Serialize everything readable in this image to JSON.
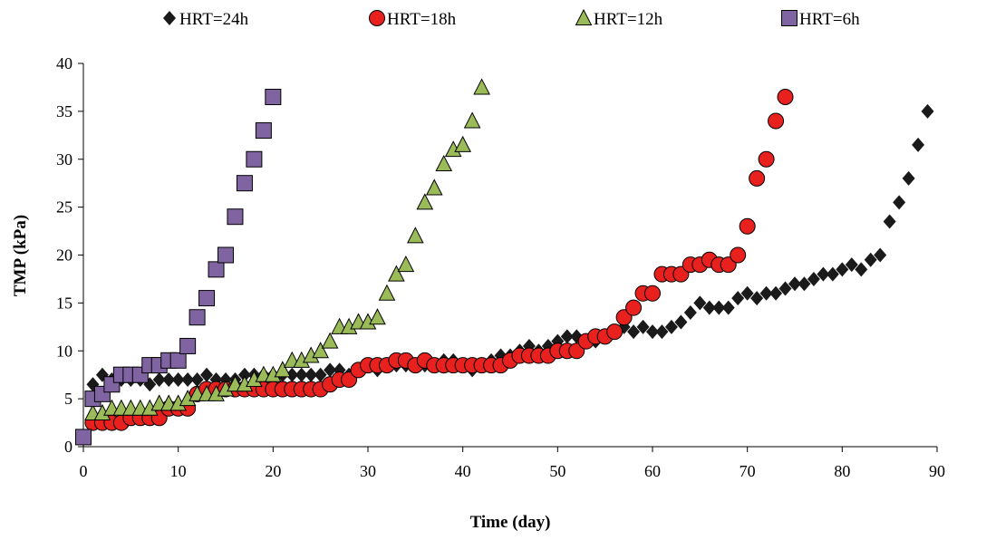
{
  "chart_data": {
    "type": "scatter",
    "title": "",
    "xlabel": "Time (day)",
    "ylabel": "TMP (kPa)",
    "xlim": [
      0,
      90
    ],
    "ylim": [
      0,
      40
    ],
    "xticks": [
      0,
      10,
      20,
      30,
      40,
      50,
      60,
      70,
      80,
      90
    ],
    "yticks": [
      0,
      5,
      10,
      15,
      20,
      25,
      30,
      35,
      40
    ],
    "grid": false,
    "legend_position": "top",
    "series": [
      {
        "name": "HRT=24h",
        "marker": "diamond",
        "color": "#1a1a1a",
        "points": [
          [
            0,
            1
          ],
          [
            1,
            6.5
          ],
          [
            2,
            7.5
          ],
          [
            3,
            7
          ],
          [
            4,
            7
          ],
          [
            5,
            7
          ],
          [
            6,
            7
          ],
          [
            7,
            6.5
          ],
          [
            8,
            7
          ],
          [
            9,
            7
          ],
          [
            10,
            7
          ],
          [
            11,
            7
          ],
          [
            12,
            7
          ],
          [
            13,
            7.5
          ],
          [
            14,
            7
          ],
          [
            15,
            7
          ],
          [
            16,
            7
          ],
          [
            17,
            7.5
          ],
          [
            18,
            7.5
          ],
          [
            19,
            7.5
          ],
          [
            20,
            7.5
          ],
          [
            21,
            7.5
          ],
          [
            22,
            7.5
          ],
          [
            23,
            7.5
          ],
          [
            24,
            7.5
          ],
          [
            25,
            7.5
          ],
          [
            26,
            8
          ],
          [
            27,
            8
          ],
          [
            28,
            7.5
          ],
          [
            29,
            8
          ],
          [
            30,
            8.5
          ],
          [
            31,
            8
          ],
          [
            32,
            8.5
          ],
          [
            33,
            8.5
          ],
          [
            34,
            8.5
          ],
          [
            35,
            8.5
          ],
          [
            36,
            8.5
          ],
          [
            37,
            8.5
          ],
          [
            38,
            9
          ],
          [
            39,
            9
          ],
          [
            40,
            8.5
          ],
          [
            41,
            8
          ],
          [
            42,
            8.5
          ],
          [
            43,
            9
          ],
          [
            44,
            9.5
          ],
          [
            45,
            9.5
          ],
          [
            46,
            10
          ],
          [
            47,
            10.5
          ],
          [
            48,
            10
          ],
          [
            49,
            10.5
          ],
          [
            50,
            11
          ],
          [
            51,
            11.5
          ],
          [
            52,
            11.5
          ],
          [
            53,
            11
          ],
          [
            54,
            11
          ],
          [
            55,
            11.5
          ],
          [
            56,
            12
          ],
          [
            57,
            12.5
          ],
          [
            58,
            12
          ],
          [
            59,
            12.5
          ],
          [
            60,
            12
          ],
          [
            61,
            12
          ],
          [
            62,
            12.5
          ],
          [
            63,
            13
          ],
          [
            64,
            14
          ],
          [
            65,
            15
          ],
          [
            66,
            14.5
          ],
          [
            67,
            14.5
          ],
          [
            68,
            14.5
          ],
          [
            69,
            15.5
          ],
          [
            70,
            16
          ],
          [
            71,
            15.5
          ],
          [
            72,
            16
          ],
          [
            73,
            16
          ],
          [
            74,
            16.5
          ],
          [
            75,
            17
          ],
          [
            76,
            17
          ],
          [
            77,
            17.5
          ],
          [
            78,
            18
          ],
          [
            79,
            18
          ],
          [
            80,
            18.5
          ],
          [
            81,
            19
          ],
          [
            82,
            18.5
          ],
          [
            83,
            19.5
          ],
          [
            84,
            20
          ],
          [
            85,
            23.5
          ],
          [
            86,
            25.5
          ],
          [
            87,
            28
          ],
          [
            88,
            31.5
          ],
          [
            89,
            35
          ]
        ]
      },
      {
        "name": "HRT=18h",
        "marker": "circle",
        "color": "#e8201e",
        "points": [
          [
            1,
            2.5
          ],
          [
            2,
            2.5
          ],
          [
            3,
            2.5
          ],
          [
            4,
            2.5
          ],
          [
            5,
            3
          ],
          [
            6,
            3
          ],
          [
            7,
            3
          ],
          [
            8,
            3
          ],
          [
            9,
            4
          ],
          [
            10,
            4
          ],
          [
            11,
            4
          ],
          [
            12,
            5.5
          ],
          [
            13,
            6
          ],
          [
            14,
            6
          ],
          [
            15,
            6
          ],
          [
            16,
            6
          ],
          [
            17,
            6
          ],
          [
            18,
            6
          ],
          [
            19,
            6
          ],
          [
            20,
            6
          ],
          [
            21,
            6
          ],
          [
            22,
            6
          ],
          [
            23,
            6
          ],
          [
            24,
            6
          ],
          [
            25,
            6
          ],
          [
            26,
            6.5
          ],
          [
            27,
            7
          ],
          [
            28,
            7
          ],
          [
            29,
            8
          ],
          [
            30,
            8.5
          ],
          [
            31,
            8.5
          ],
          [
            32,
            8.5
          ],
          [
            33,
            9
          ],
          [
            34,
            9
          ],
          [
            35,
            8.5
          ],
          [
            36,
            9
          ],
          [
            37,
            8.5
          ],
          [
            38,
            8.5
          ],
          [
            39,
            8.5
          ],
          [
            40,
            8.5
          ],
          [
            41,
            8.5
          ],
          [
            42,
            8.5
          ],
          [
            43,
            8.5
          ],
          [
            44,
            8.5
          ],
          [
            45,
            9
          ],
          [
            46,
            9.5
          ],
          [
            47,
            9.5
          ],
          [
            48,
            9.5
          ],
          [
            49,
            9.5
          ],
          [
            50,
            10
          ],
          [
            51,
            10
          ],
          [
            52,
            10
          ],
          [
            53,
            11
          ],
          [
            54,
            11.5
          ],
          [
            55,
            11.5
          ],
          [
            56,
            12
          ],
          [
            57,
            13.5
          ],
          [
            58,
            14.5
          ],
          [
            59,
            16
          ],
          [
            60,
            16
          ],
          [
            61,
            18
          ],
          [
            62,
            18
          ],
          [
            63,
            18
          ],
          [
            64,
            19
          ],
          [
            65,
            19
          ],
          [
            66,
            19.5
          ],
          [
            67,
            19
          ],
          [
            68,
            19
          ],
          [
            69,
            20
          ],
          [
            70,
            23
          ],
          [
            71,
            28
          ],
          [
            72,
            30
          ],
          [
            73,
            34
          ],
          [
            74,
            36.5
          ]
        ]
      },
      {
        "name": "HRT=12h",
        "marker": "triangle",
        "color": "#9bbb59",
        "points": [
          [
            1,
            3.5
          ],
          [
            2,
            3.5
          ],
          [
            3,
            4
          ],
          [
            4,
            4
          ],
          [
            5,
            4
          ],
          [
            6,
            4
          ],
          [
            7,
            4
          ],
          [
            8,
            4.5
          ],
          [
            9,
            4.5
          ],
          [
            10,
            4.5
          ],
          [
            11,
            5
          ],
          [
            12,
            5.5
          ],
          [
            13,
            5.5
          ],
          [
            14,
            5.5
          ],
          [
            15,
            6
          ],
          [
            16,
            6.5
          ],
          [
            17,
            6.5
          ],
          [
            18,
            7
          ],
          [
            19,
            7.5
          ],
          [
            20,
            7.5
          ],
          [
            21,
            8
          ],
          [
            22,
            9
          ],
          [
            23,
            9
          ],
          [
            24,
            9.5
          ],
          [
            25,
            10
          ],
          [
            26,
            11
          ],
          [
            27,
            12.5
          ],
          [
            28,
            12.5
          ],
          [
            29,
            13
          ],
          [
            30,
            13
          ],
          [
            31,
            13.5
          ],
          [
            32,
            16
          ],
          [
            33,
            18
          ],
          [
            34,
            19
          ],
          [
            35,
            22
          ],
          [
            36,
            25.5
          ],
          [
            37,
            27
          ],
          [
            38,
            29.5
          ],
          [
            39,
            31
          ],
          [
            40,
            31.5
          ],
          [
            41,
            34
          ],
          [
            42,
            37.5
          ]
        ]
      },
      {
        "name": "HRT=6h",
        "marker": "square",
        "color": "#8064a2",
        "points": [
          [
            0,
            1
          ],
          [
            1,
            5
          ],
          [
            2,
            5.5
          ],
          [
            3,
            6.5
          ],
          [
            4,
            7.5
          ],
          [
            5,
            7.5
          ],
          [
            6,
            7.5
          ],
          [
            7,
            8.5
          ],
          [
            8,
            8.5
          ],
          [
            9,
            9
          ],
          [
            10,
            9
          ],
          [
            11,
            10.5
          ],
          [
            12,
            13.5
          ],
          [
            13,
            15.5
          ],
          [
            14,
            18.5
          ],
          [
            15,
            20
          ],
          [
            16,
            24
          ],
          [
            17,
            27.5
          ],
          [
            18,
            30
          ],
          [
            19,
            33
          ],
          [
            20,
            36.5
          ]
        ]
      }
    ]
  }
}
